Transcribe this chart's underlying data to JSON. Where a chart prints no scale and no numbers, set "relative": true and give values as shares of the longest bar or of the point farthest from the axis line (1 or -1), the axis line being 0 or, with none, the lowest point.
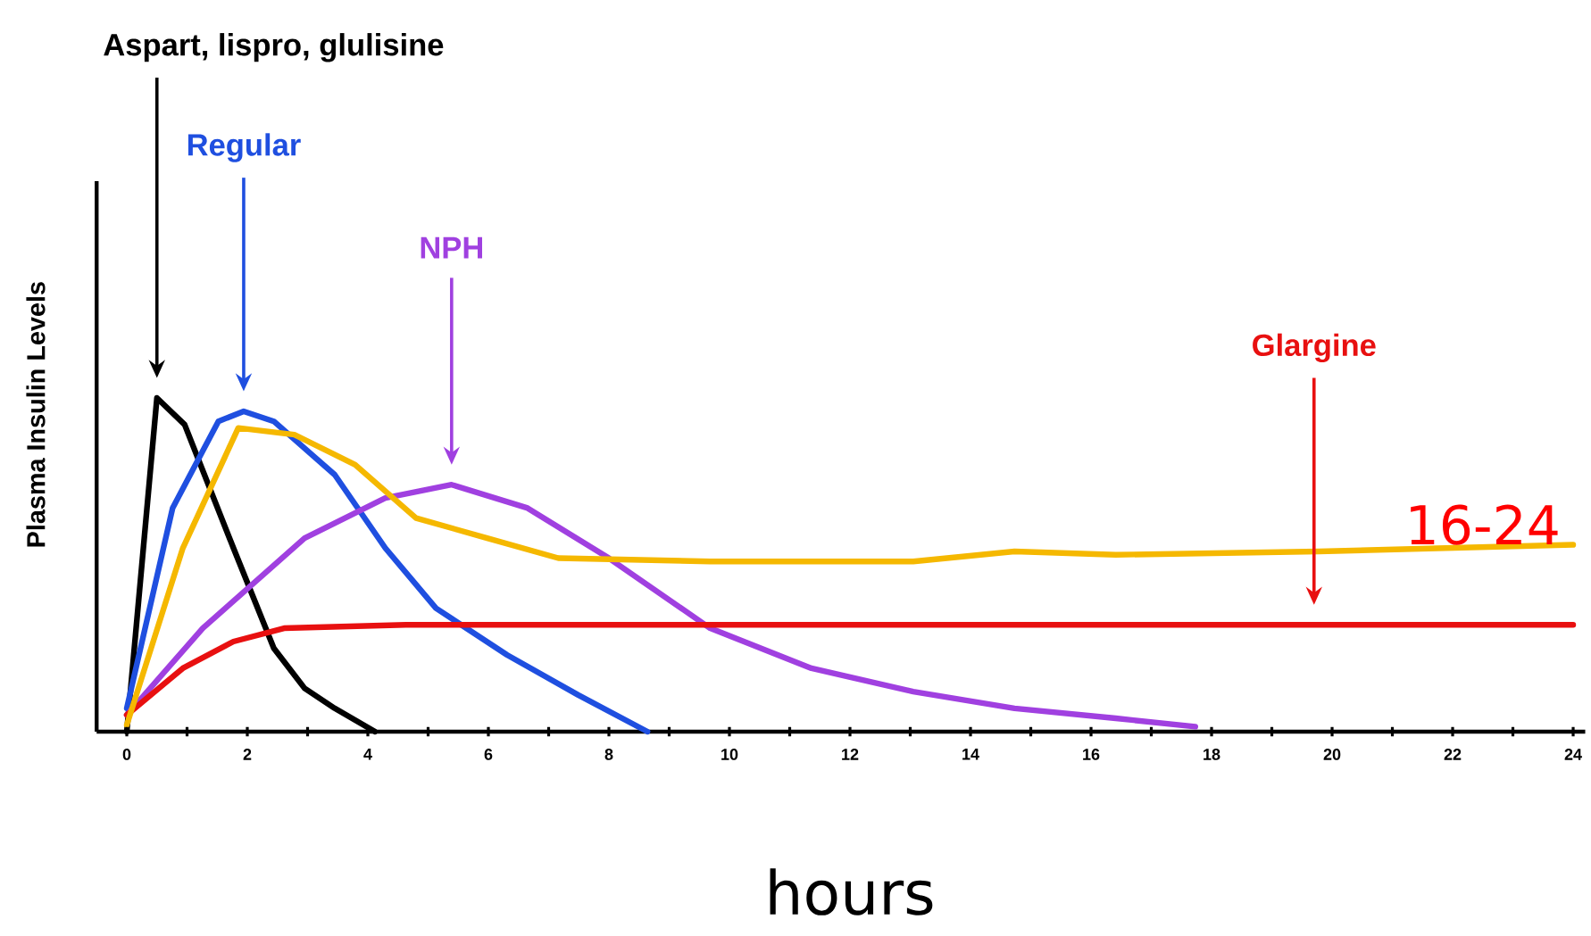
{
  "chart_data": {
    "type": "line",
    "xlabel": "hours",
    "ylabel": "Plasma Insulin Levels",
    "relative": true,
    "marker": "none",
    "legend": false,
    "xlim": [
      -0.5,
      24.2
    ],
    "xticks": [
      0,
      {
        "value": 1,
        "label": null
      },
      2,
      {
        "value": 3,
        "label": null
      },
      4,
      {
        "value": 5,
        "label": null
      },
      6,
      {
        "value": 7,
        "label": null
      },
      8,
      {
        "value": 9,
        "label": null
      },
      10,
      {
        "value": 11,
        "label": null
      },
      12,
      {
        "value": 13,
        "label": null
      },
      14,
      {
        "value": 15,
        "label": null
      },
      16,
      {
        "value": 17,
        "label": null
      },
      18,
      {
        "value": 19,
        "label": null
      },
      20,
      {
        "value": 21,
        "label": null
      },
      22,
      {
        "value": 23,
        "label": null
      },
      24
    ],
    "series": [
      {
        "name": "Aspart, lispro, glulisine",
        "color": "#000000",
        "x": [
          0,
          0.5,
          0.96,
          1.77,
          2.44,
          2.95,
          3.45,
          4.12
        ],
        "values": [
          0,
          1.0,
          0.92,
          0.55,
          0.25,
          0.13,
          0.07,
          0
        ]
      },
      {
        "name": "Regular",
        "color": "#1f4fe0",
        "x": [
          0,
          0.76,
          1.52,
          1.94,
          2.44,
          3.45,
          4.29,
          5.13,
          6.31,
          7.49,
          8.64
        ],
        "values": [
          0.07,
          0.67,
          0.93,
          0.96,
          0.93,
          0.77,
          0.55,
          0.37,
          0.23,
          0.11,
          0
        ]
      },
      {
        "name": "NPH",
        "color": "#a040e0",
        "x": [
          0,
          1.26,
          2.95,
          4.29,
          5.39,
          6.65,
          8.0,
          9.68,
          11.36,
          13.05,
          14.73,
          16.41,
          17.73
        ],
        "values": [
          0.05,
          0.31,
          0.58,
          0.7,
          0.74,
          0.67,
          0.52,
          0.31,
          0.19,
          0.12,
          0.07,
          0.04,
          0.015
        ]
      },
      {
        "name": "Glargine",
        "color": "#e81010",
        "x": [
          0,
          0.93,
          1.77,
          2.61,
          4.63,
          19.7,
          24
        ],
        "values": [
          0.05,
          0.19,
          0.27,
          0.31,
          0.32,
          0.32,
          0.32
        ]
      },
      {
        "color": "#f5b800",
        "x": [
          0,
          0.93,
          1.85,
          2.78,
          3.79,
          4.8,
          5.98,
          7.16,
          9.68,
          13.05,
          14.73,
          16.41,
          19.78,
          24
        ],
        "values": [
          0.02,
          0.55,
          0.91,
          0.89,
          0.8,
          0.64,
          0.58,
          0.52,
          0.51,
          0.51,
          0.54,
          0.53,
          0.54,
          0.56
        ]
      }
    ],
    "annotations": [
      "16-24"
    ]
  }
}
